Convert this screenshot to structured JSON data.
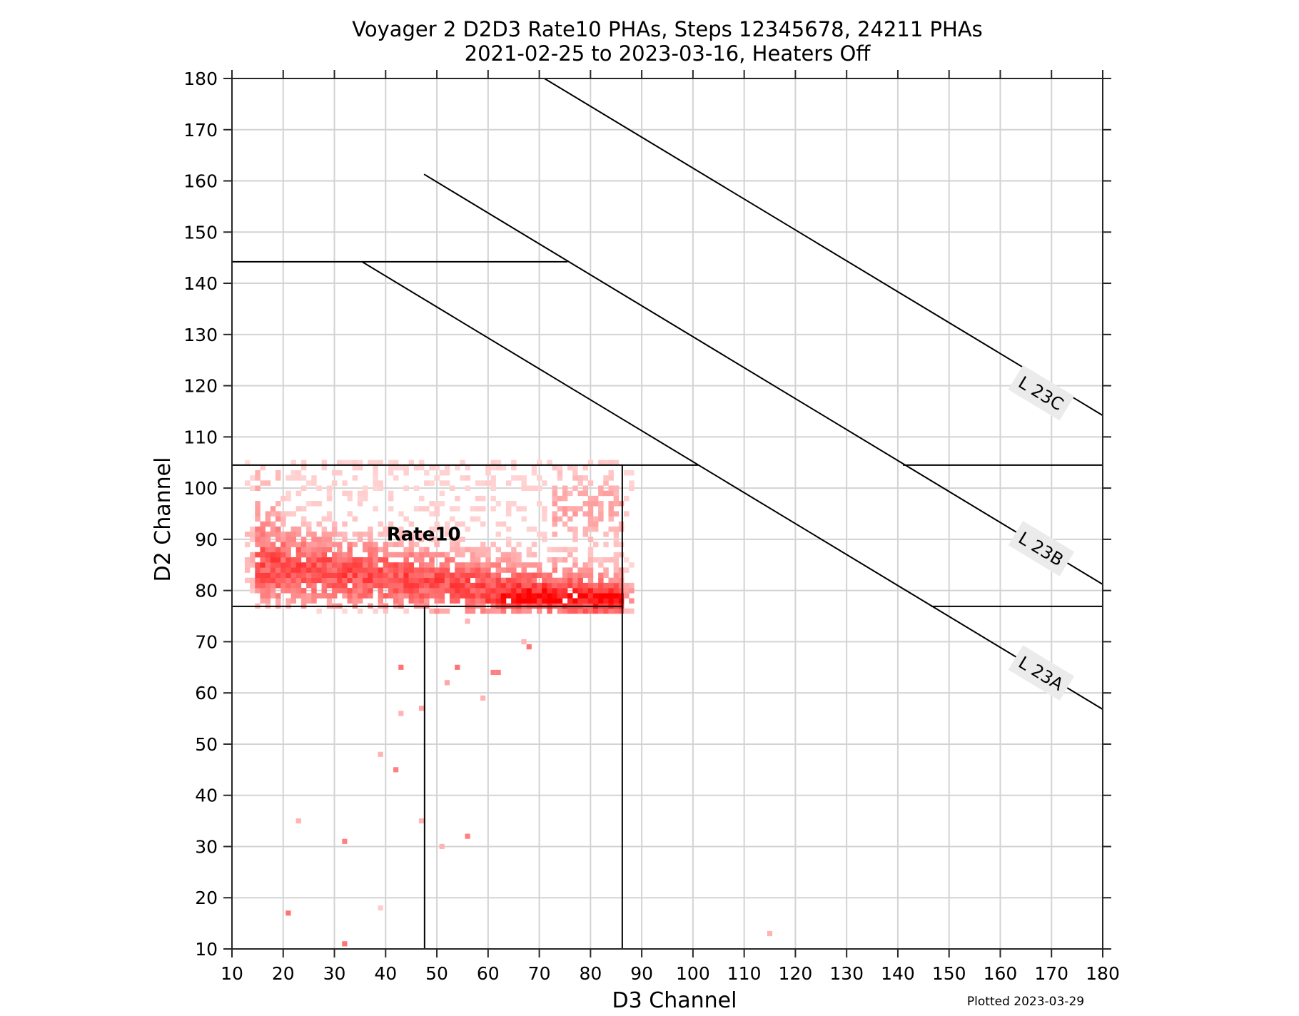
{
  "chart_data": {
    "type": "heatmap",
    "title": "Voyager 2 D2D3 Rate10 PHAs, Steps 12345678, 24211 PHAs",
    "subtitle": "2021-02-25 to 2023-03-16, Heaters Off",
    "xlabel": "D3 Channel",
    "ylabel": "D2 Channel",
    "footnote": "Plotted 2023-03-29",
    "xlim": [
      10,
      180
    ],
    "ylim": [
      10,
      180
    ],
    "xticks": [
      10,
      20,
      30,
      40,
      50,
      60,
      70,
      80,
      90,
      100,
      110,
      120,
      130,
      140,
      150,
      160,
      170,
      180
    ],
    "yticks": [
      10,
      20,
      30,
      40,
      50,
      60,
      70,
      80,
      90,
      100,
      110,
      120,
      130,
      140,
      150,
      160,
      170,
      180
    ],
    "grid": true,
    "colormap": "white-to-red",
    "color_max": "#ff0000",
    "box_label": {
      "text": "Rate10",
      "x": 40.2,
      "y": 89.8
    },
    "boundary_lines": [
      {
        "name": "L23C",
        "x": [
          71.0,
          180.0
        ],
        "y": [
          180.0,
          114.2
        ],
        "label": "L 23C",
        "label_at": [
          168.0,
          118.6
        ]
      },
      {
        "name": "L23B",
        "x": [
          47.5,
          180.0
        ],
        "y": [
          161.3,
          81.2
        ],
        "label": "L 23B",
        "label_at": [
          168.0,
          88.2
        ]
      },
      {
        "name": "L23A",
        "x": [
          35.4,
          180.0
        ],
        "y": [
          144.2,
          56.8
        ],
        "label": "L 23A",
        "label_at": [
          168.0,
          63.9
        ]
      },
      {
        "name": "upper-horizontal-left",
        "x": [
          10.0,
          75.5
        ],
        "y": [
          144.2,
          144.2
        ]
      },
      {
        "name": "rate10-top",
        "x": [
          10.0,
          101.0
        ],
        "y": [
          104.5,
          104.5
        ]
      },
      {
        "name": "right-horizontal-top",
        "x": [
          141.0,
          180.0
        ],
        "y": [
          104.5,
          104.5
        ]
      },
      {
        "name": "rate10-bottom",
        "x": [
          10.0,
          86.2
        ],
        "y": [
          76.9,
          76.9
        ]
      },
      {
        "name": "right-horizontal-bottom",
        "x": [
          146.5,
          180.0
        ],
        "y": [
          76.9,
          76.9
        ]
      },
      {
        "name": "vertical-left",
        "x": [
          47.6,
          47.6
        ],
        "y": [
          10.0,
          76.9
        ]
      },
      {
        "name": "vertical-right",
        "x": [
          86.2,
          86.2
        ],
        "y": [
          10.0,
          104.5
        ]
      }
    ],
    "heatmap_region": {
      "x_range": [
        13,
        88
      ],
      "y_range": [
        76,
        105
      ],
      "bin_size": 1
    },
    "dense_band": {
      "center_d2_at_d3_15": 85,
      "center_d2_at_d3_85": 78.5,
      "peak_x_range": [
        55,
        86
      ]
    },
    "outlier_points": [
      {
        "x": 40,
        "y": 76,
        "intensity": 0.25
      },
      {
        "x": 56,
        "y": 74,
        "intensity": 0.3
      },
      {
        "x": 67,
        "y": 70,
        "intensity": 0.3
      },
      {
        "x": 68,
        "y": 69,
        "intensity": 0.55
      },
      {
        "x": 43,
        "y": 65,
        "intensity": 0.55
      },
      {
        "x": 54,
        "y": 65,
        "intensity": 0.55
      },
      {
        "x": 61,
        "y": 64,
        "intensity": 0.5
      },
      {
        "x": 62,
        "y": 64,
        "intensity": 0.5
      },
      {
        "x": 52,
        "y": 62,
        "intensity": 0.35
      },
      {
        "x": 59,
        "y": 59,
        "intensity": 0.3
      },
      {
        "x": 47,
        "y": 57,
        "intensity": 0.35
      },
      {
        "x": 43,
        "y": 56,
        "intensity": 0.3
      },
      {
        "x": 39,
        "y": 48,
        "intensity": 0.3
      },
      {
        "x": 42,
        "y": 45,
        "intensity": 0.5
      },
      {
        "x": 23,
        "y": 35,
        "intensity": 0.3
      },
      {
        "x": 47,
        "y": 35,
        "intensity": 0.3
      },
      {
        "x": 56,
        "y": 32,
        "intensity": 0.5
      },
      {
        "x": 32,
        "y": 31,
        "intensity": 0.5
      },
      {
        "x": 51,
        "y": 30,
        "intensity": 0.3
      },
      {
        "x": 39,
        "y": 18,
        "intensity": 0.2
      },
      {
        "x": 21,
        "y": 17,
        "intensity": 0.55
      },
      {
        "x": 32,
        "y": 11,
        "intensity": 0.55
      },
      {
        "x": 115,
        "y": 13,
        "intensity": 0.3
      }
    ]
  }
}
